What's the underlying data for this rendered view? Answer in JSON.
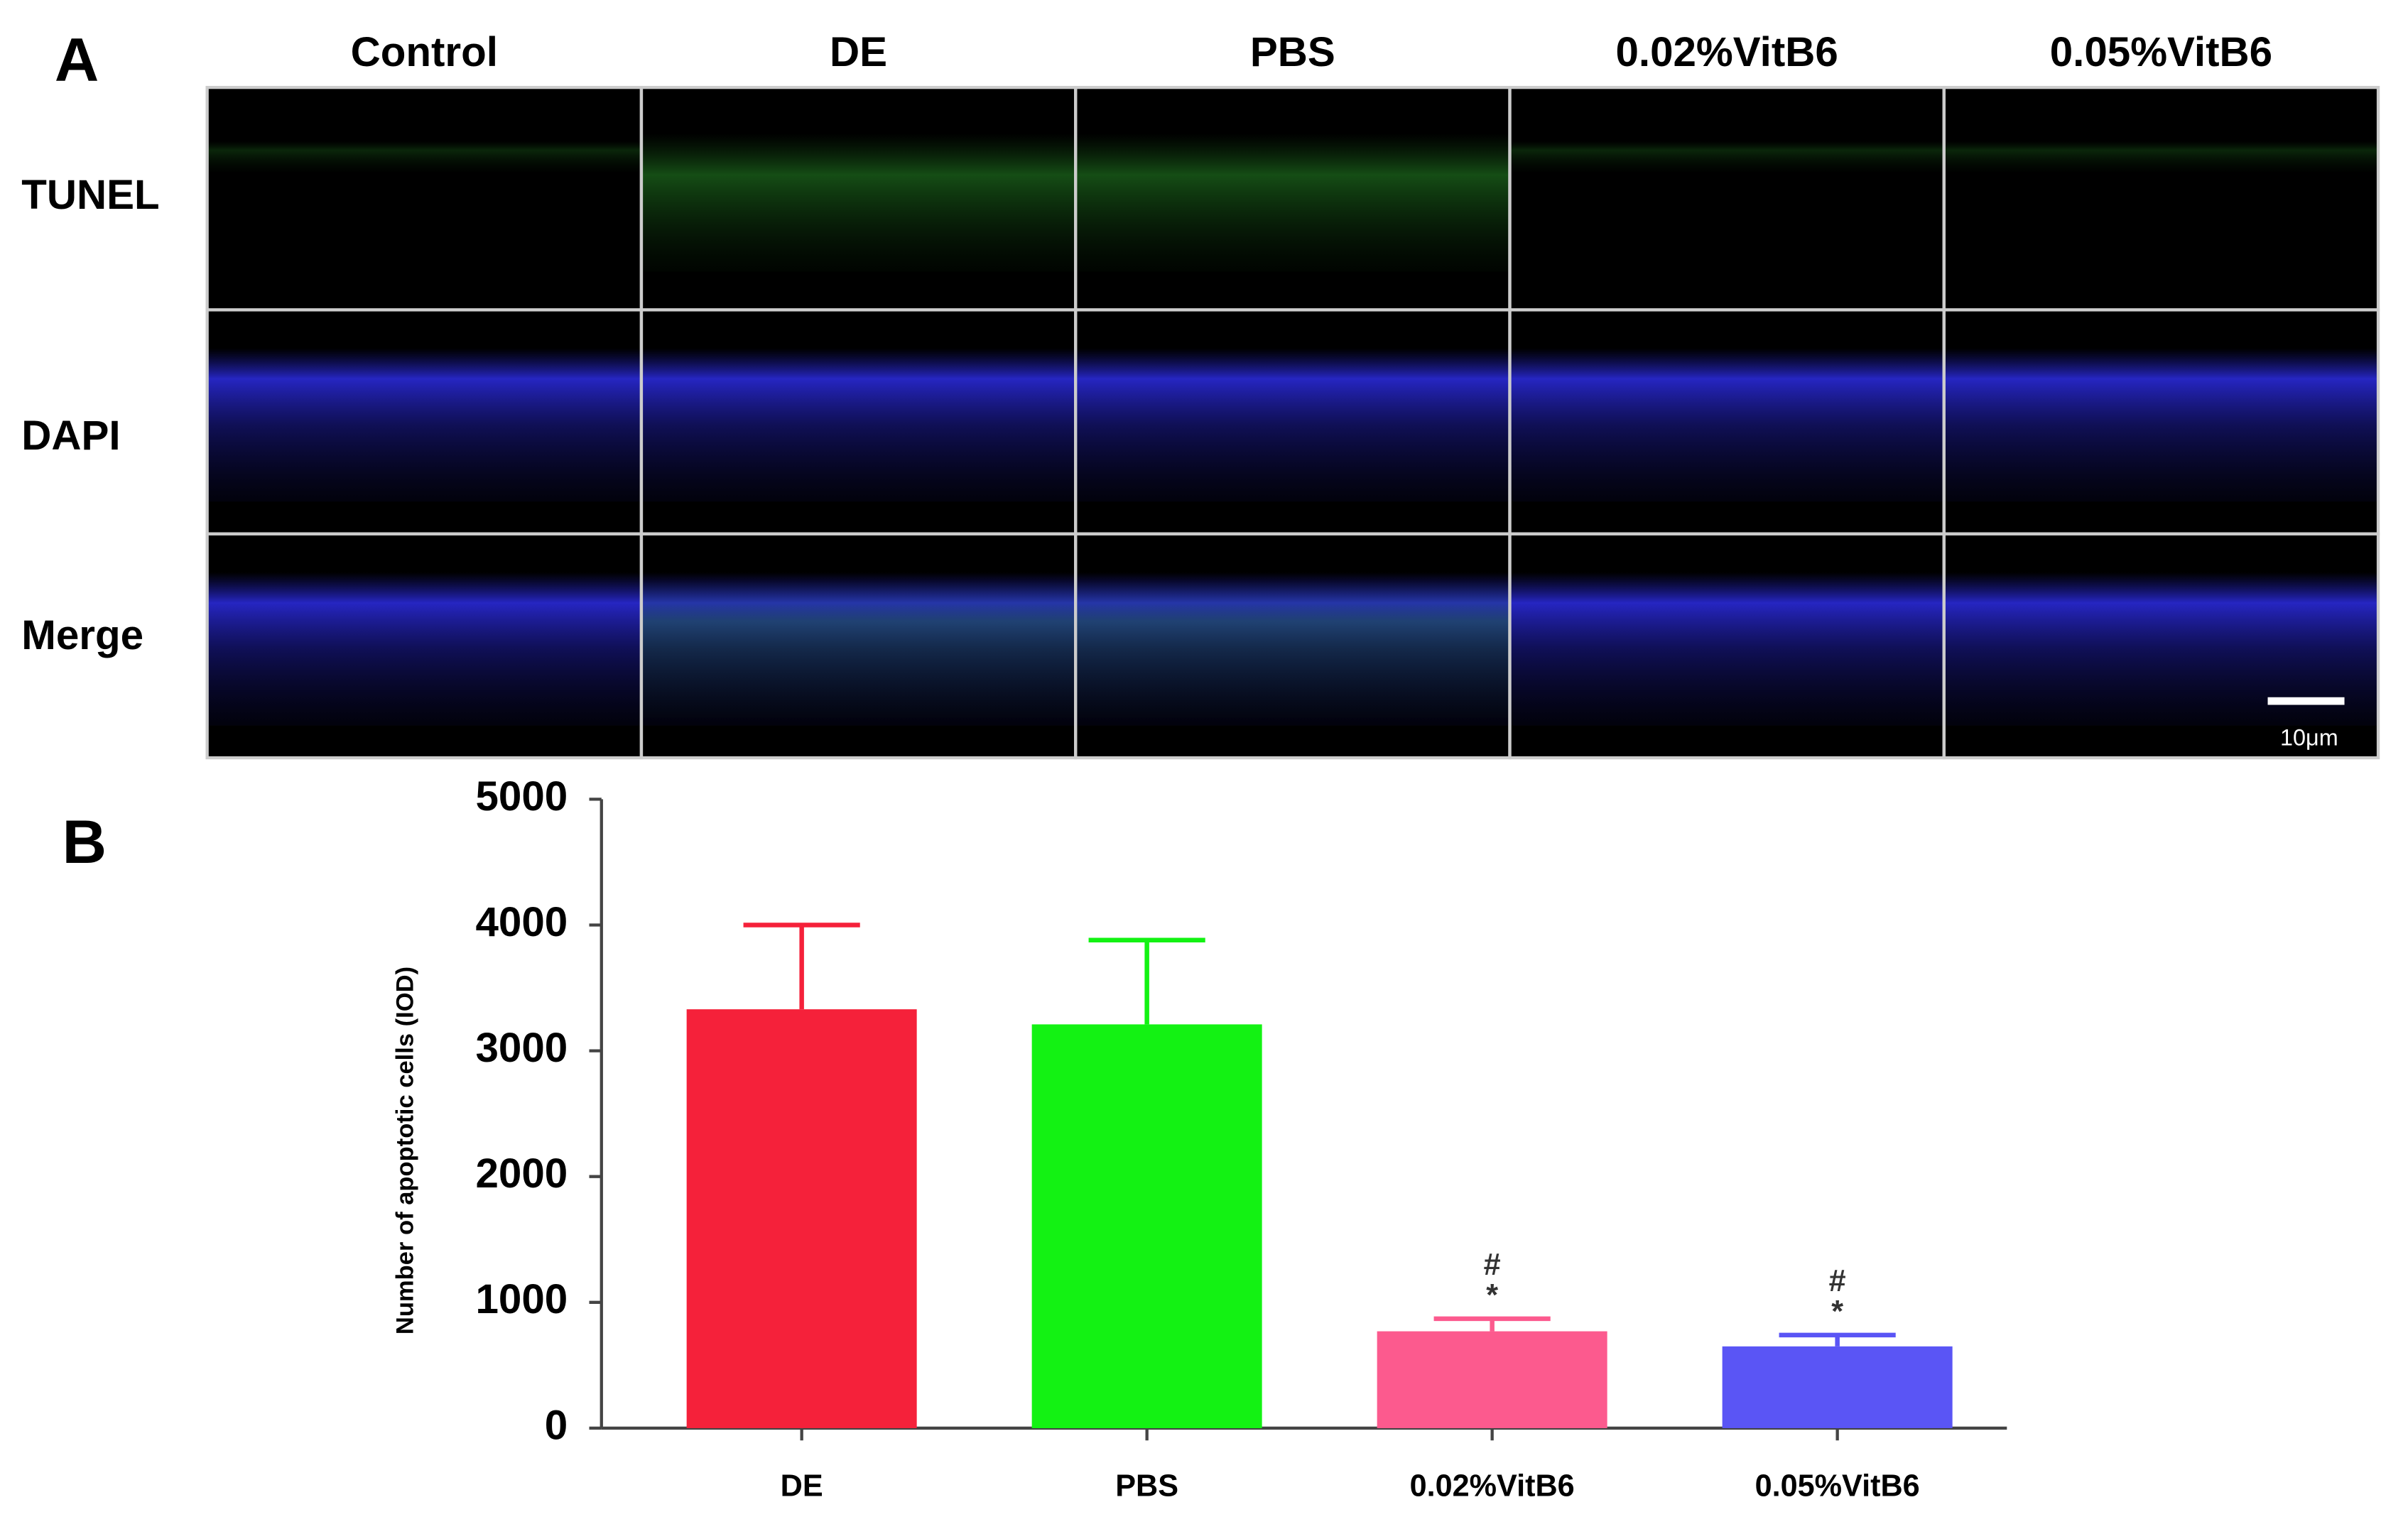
{
  "panel_a": {
    "label": "A",
    "columns": [
      "Control",
      "DE",
      "PBS",
      "0.02%VitB6",
      "0.05%VitB6"
    ],
    "rows": [
      "TUNEL",
      "DAPI",
      "Merge"
    ],
    "scale_bar": "10μm"
  },
  "chart_data": {
    "type": "bar",
    "panel_label": "B",
    "y_label": "Number of apoptotic cells (IOD)",
    "categories": [
      "DE",
      "PBS",
      "0.02%VitB6",
      "0.05%VitB6"
    ],
    "values": [
      3330,
      3210,
      770,
      650
    ],
    "errors": [
      670,
      670,
      100,
      90
    ],
    "colors": [
      "#f5213a",
      "#13f213",
      "#fc5a8e",
      "#5a55f5"
    ],
    "annotations": [
      null,
      null,
      [
        "#",
        "*"
      ],
      [
        "#",
        "*"
      ]
    ],
    "ylim": [
      0,
      5000
    ],
    "yticks": [
      0,
      1000,
      2000,
      3000,
      4000,
      5000
    ],
    "grid": false
  }
}
